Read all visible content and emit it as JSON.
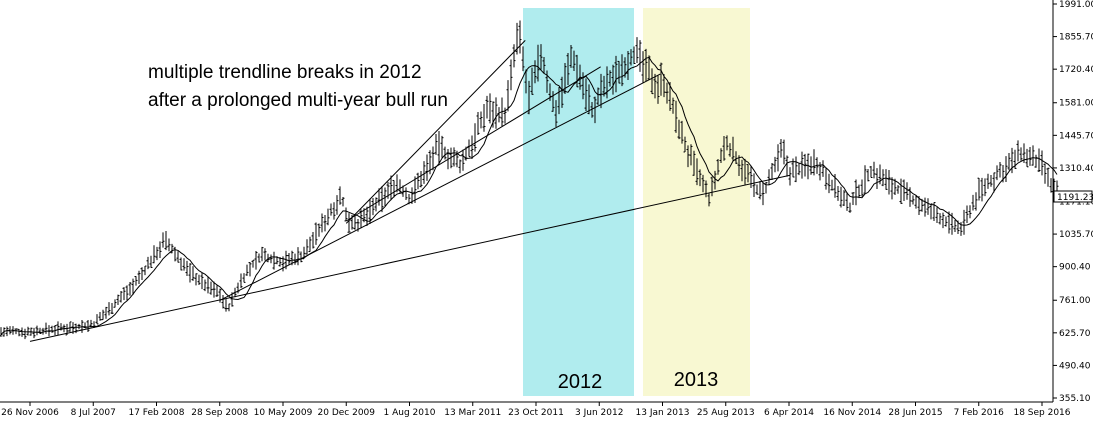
{
  "chart_data": {
    "type": "bar",
    "subtype": "ohlc-price-chart-with-moving-average",
    "x_tick_labels": [
      "26 Nov 2006",
      "8 Jul 2007",
      "17 Feb 2008",
      "28 Sep 2008",
      "10 May 2009",
      "20 Dec 2009",
      "1 Aug 2010",
      "13 Mar 2011",
      "23 Oct 2011",
      "3 Jun 2012",
      "13 Jan 2013",
      "25 Aug 2013",
      "6 Apr 2014",
      "16 Nov 2014",
      "28 Jun 2015",
      "7 Feb 2016",
      "18 Sep 2016"
    ],
    "y_tick_labels": [
      "1991.00",
      "1855.70",
      "1720.40",
      "1581.00",
      "1445.70",
      "1310.40",
      "1171.10",
      "1035.70",
      "900.40",
      "761.00",
      "625.70",
      "490.40",
      "355.10"
    ],
    "ylim": [
      355.1,
      1991.0
    ],
    "current_price_label": "1191.23",
    "annotation_lines": [
      "multiple trendline breaks in 2012",
      "after a prolonged multi-year bull run"
    ],
    "highlight_bands": [
      {
        "label": "2012",
        "color": "#b0ecee"
      },
      {
        "label": "2013",
        "color": "#f8f8d2"
      }
    ],
    "price_path": [
      [
        "26 Nov 2006",
        630
      ],
      [
        "8 Jul 2007",
        660
      ],
      [
        "10 Dec 2007",
        840
      ],
      [
        "17 Feb 2008",
        960
      ],
      [
        "17 Mar 2008",
        1010
      ],
      [
        "10 Jun 2008",
        880
      ],
      [
        "15 Aug 2008",
        820
      ],
      [
        "28 Sep 2008",
        790
      ],
      [
        "25 Oct 2008",
        720
      ],
      [
        "15 Dec 2008",
        850
      ],
      [
        "20 Feb 2009",
        950
      ],
      [
        "10 May 2009",
        920
      ],
      [
        "20 Jul 2009",
        950
      ],
      [
        "3 Dec 2009",
        1200
      ],
      [
        "20 Dec 2009",
        1100
      ],
      [
        "5 Feb 2010",
        1080
      ],
      [
        "15 Jun 2010",
        1250
      ],
      [
        "1 Aug 2010",
        1180
      ],
      [
        "10 Nov 2010",
        1400
      ],
      [
        "28 Jan 2011",
        1320
      ],
      [
        "13 Mar 2011",
        1420
      ],
      [
        "2 May 2011",
        1560
      ],
      [
        "5 Jul 2011",
        1530
      ],
      [
        "22 Aug 2011",
        1880
      ],
      [
        "26 Sep 2011",
        1600
      ],
      [
        "23 Oct 2011",
        1700
      ],
      [
        "8 Nov 2011",
        1790
      ],
      [
        "29 Dec 2011",
        1540
      ],
      [
        "28 Feb 2012",
        1780
      ],
      [
        "16 May 2012",
        1530
      ],
      [
        "3 Jun 2012",
        1620
      ],
      [
        "5 Oct 2012",
        1790
      ],
      [
        "28 Dec 2012",
        1650
      ],
      [
        "13 Jan 2013",
        1690
      ],
      [
        "10 Apr 2013",
        1380
      ],
      [
        "28 Jun 2013",
        1180
      ],
      [
        "25 Aug 2013",
        1420
      ],
      [
        "31 Dec 2013",
        1190
      ],
      [
        "15 Mar 2014",
        1390
      ],
      [
        "6 Apr 2014",
        1290
      ],
      [
        "10 Jul 2014",
        1340
      ],
      [
        "6 Nov 2014",
        1140
      ],
      [
        "16 Nov 2014",
        1180
      ],
      [
        "22 Jan 2015",
        1300
      ],
      [
        "28 Jun 2015",
        1170
      ],
      [
        "3 Dec 2015",
        1050
      ],
      [
        "7 Feb 2016",
        1210
      ],
      [
        "6 Jul 2016",
        1370
      ],
      [
        "18 Sep 2016",
        1320
      ],
      [
        "15 Oct 2016",
        1240
      ],
      [
        "20 Nov 2016",
        1191.23
      ]
    ]
  }
}
